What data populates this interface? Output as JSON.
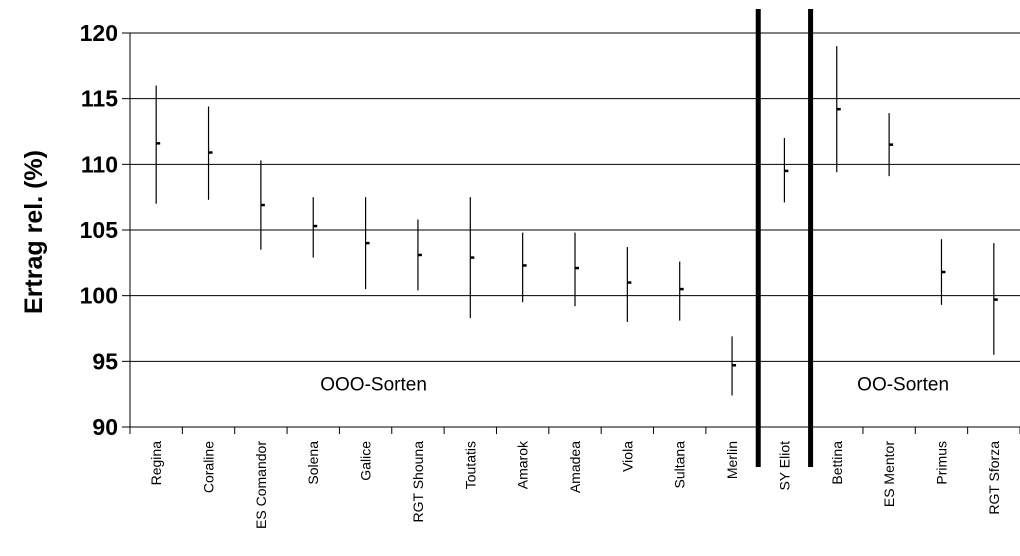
{
  "chart_data": {
    "type": "errorbar",
    "title": "",
    "xlabel": "",
    "ylabel": "Ertrag rel. (%)",
    "ylim": [
      90,
      120
    ],
    "yticks": [
      90,
      95,
      100,
      105,
      110,
      115,
      120
    ],
    "grid": "horizontal",
    "categories": [
      "Regina",
      "Coraline",
      "ES Comandor",
      "Solena",
      "Galice",
      "RGT Shouna",
      "Toutatis",
      "Amarok",
      "Amadea",
      "Viola",
      "Sultana",
      "Merlin",
      "SY Eliot",
      "Bettina",
      "ES Mentor",
      "Primus",
      "RGT Sforza"
    ],
    "mean": [
      111.6,
      110.9,
      106.9,
      105.3,
      104.0,
      103.1,
      102.9,
      102.3,
      102.1,
      101.0,
      100.5,
      94.7,
      109.5,
      114.2,
      111.5,
      101.8,
      99.7
    ],
    "low": [
      107.0,
      107.3,
      103.5,
      102.9,
      100.5,
      100.4,
      98.3,
      99.5,
      99.2,
      98.0,
      98.1,
      92.4,
      107.1,
      109.4,
      109.1,
      99.3,
      95.5
    ],
    "high": [
      116.0,
      114.4,
      110.3,
      107.5,
      107.5,
      105.8,
      107.5,
      104.8,
      104.8,
      103.7,
      102.6,
      96.9,
      112.0,
      119.0,
      113.9,
      104.3,
      104.0
    ],
    "separators_after": [
      "Merlin",
      "SY Eliot"
    ],
    "annotations": [
      {
        "text": "OOO-Sorten",
        "anchor_category": "Galice",
        "y": 93.3
      },
      {
        "text": "OO-Sorten",
        "anchor_category": "ES Mentor",
        "y": 93.3
      }
    ]
  }
}
